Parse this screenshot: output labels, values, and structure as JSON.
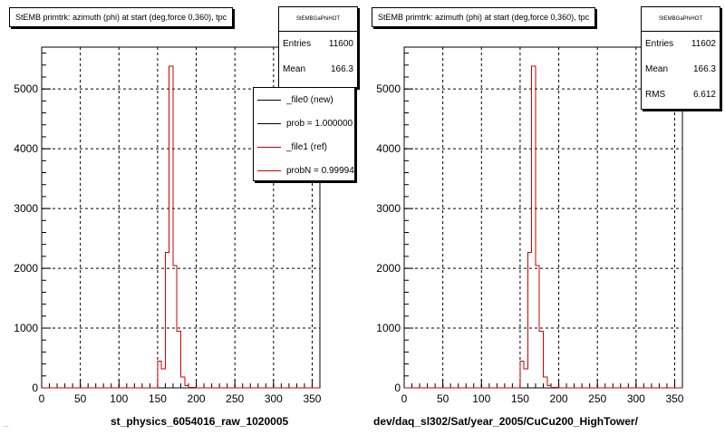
{
  "colors": {
    "new": "#000000",
    "ref": "#cc0000",
    "grid": "#000000"
  },
  "footer_text": "...",
  "panels": [
    {
      "title": "StEMB primtrk: azimuth (phi) at start (deg,force 0,360), tpc",
      "stats": {
        "name": "StEMBGaPhiHOT",
        "rows": [
          {
            "label": "Entries",
            "value": "11600"
          },
          {
            "label": "Mean",
            "value": "166.3"
          }
        ]
      },
      "legend": [
        {
          "label": "_file0 (new)",
          "color": "#000000"
        },
        {
          "label": "prob = 1.000000",
          "color": "#000000"
        },
        {
          "label": "_file1 (ref)",
          "color": "#cc0000"
        },
        {
          "label": "probN = 0.99994",
          "color": "#cc0000"
        }
      ],
      "x_title": "st_physics_6054016_raw_1020005"
    },
    {
      "title": "StEMB primtrk: azimuth (phi) at start (deg,force 0,360), tpc",
      "stats": {
        "name": "StEMBGaPhiHOT",
        "rows": [
          {
            "label": "Entries",
            "value": "11602"
          },
          {
            "label": "Mean",
            "value": "166.3"
          },
          {
            "label": "RMS",
            "value": "6.612"
          }
        ]
      },
      "legend": [],
      "x_title": "dev/daq_sl302/Sat/year_2005/CuCu200_HighTower/"
    }
  ],
  "chart_data": [
    {
      "type": "histogram",
      "title": "StEMB primtrk: azimuth (phi) at start (deg,force 0,360), tpc",
      "xlabel": "st_physics_6054016_raw_1020005",
      "ylabel": "",
      "xlim": [
        0,
        360
      ],
      "ylim": [
        0,
        5700
      ],
      "x_ticks": [
        0,
        50,
        100,
        150,
        200,
        250,
        300,
        350
      ],
      "y_ticks": [
        0,
        1000,
        2000,
        3000,
        4000,
        5000
      ],
      "grid": true,
      "bin_width": 5,
      "series": [
        {
          "name": "_file0 (new)",
          "color": "#000000",
          "bins": [
            {
              "x": 150,
              "y": 450
            },
            {
              "x": 155,
              "y": 320
            },
            {
              "x": 160,
              "y": 2270
            },
            {
              "x": 165,
              "y": 5380
            },
            {
              "x": 170,
              "y": 2050
            },
            {
              "x": 175,
              "y": 950
            },
            {
              "x": 180,
              "y": 180
            },
            {
              "x": 185,
              "y": 40
            },
            {
              "x": 190,
              "y": 10
            },
            {
              "x": 195,
              "y": 5
            }
          ]
        },
        {
          "name": "_file1 (ref)",
          "color": "#cc0000",
          "bins": [
            {
              "x": 150,
              "y": 450
            },
            {
              "x": 155,
              "y": 320
            },
            {
              "x": 160,
              "y": 2270
            },
            {
              "x": 165,
              "y": 5380
            },
            {
              "x": 170,
              "y": 2050
            },
            {
              "x": 175,
              "y": 950
            },
            {
              "x": 180,
              "y": 180
            },
            {
              "x": 185,
              "y": 40
            },
            {
              "x": 190,
              "y": 10
            },
            {
              "x": 195,
              "y": 5
            }
          ]
        }
      ]
    },
    {
      "type": "histogram",
      "title": "StEMB primtrk: azimuth (phi) at start (deg,force 0,360), tpc",
      "xlabel": "dev/daq_sl302/Sat/year_2005/CuCu200_HighTower/",
      "ylabel": "",
      "xlim": [
        0,
        360
      ],
      "ylim": [
        0,
        5700
      ],
      "x_ticks": [
        0,
        50,
        100,
        150,
        200,
        250,
        300,
        350
      ],
      "y_ticks": [
        0,
        1000,
        2000,
        3000,
        4000,
        5000
      ],
      "grid": true,
      "bin_width": 5,
      "series": [
        {
          "name": "",
          "color": "#cc0000",
          "bins": [
            {
              "x": 150,
              "y": 450
            },
            {
              "x": 155,
              "y": 320
            },
            {
              "x": 160,
              "y": 2270
            },
            {
              "x": 165,
              "y": 5380
            },
            {
              "x": 170,
              "y": 2050
            },
            {
              "x": 175,
              "y": 950
            },
            {
              "x": 180,
              "y": 180
            },
            {
              "x": 185,
              "y": 40
            },
            {
              "x": 190,
              "y": 10
            },
            {
              "x": 195,
              "y": 5
            }
          ]
        }
      ]
    }
  ]
}
